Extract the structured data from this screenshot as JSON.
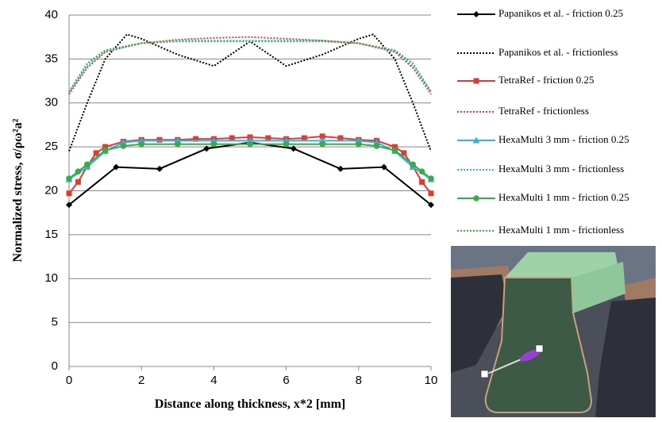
{
  "chart_data": {
    "type": "line",
    "xlabel": "Distance along thickness, x*2 [mm]",
    "ylabel": "Normalized stress, σ/ρω²a²",
    "xlim": [
      0,
      10
    ],
    "xticks": [
      0,
      2,
      4,
      6,
      8,
      10
    ],
    "ylim": [
      0,
      40
    ],
    "yticks": [
      0,
      5,
      10,
      15,
      20,
      25,
      30,
      35,
      40
    ],
    "grid": true,
    "series": [
      {
        "name": "Papanikos et al. - friction 0.25",
        "color": "#000000",
        "marker": "diamond",
        "dashed": false,
        "x": [
          0,
          1.3,
          2.5,
          3.8,
          5,
          6.2,
          7.5,
          8.7,
          10
        ],
        "values": [
          18.4,
          22.7,
          22.5,
          24.8,
          25.5,
          24.8,
          22.5,
          22.7,
          18.4
        ]
      },
      {
        "name": "Papanikos et al. - frictionless",
        "color": "#000000",
        "marker": null,
        "dashed": true,
        "x": [
          0,
          0.5,
          1,
          1.6,
          2,
          3,
          4,
          5,
          6,
          7,
          8,
          8.4,
          9,
          9.5,
          10
        ],
        "values": [
          24.5,
          30,
          35,
          37.8,
          37.3,
          35.5,
          34.2,
          37,
          34.2,
          35.5,
          37.3,
          37.8,
          35,
          30,
          24.5
        ]
      },
      {
        "name": "TetraRef - friction 0.25",
        "color": "#e03a33",
        "marker": "square",
        "dashed": false,
        "x": [
          0,
          0.25,
          0.5,
          0.75,
          1,
          1.5,
          2,
          2.5,
          3,
          3.5,
          4,
          4.5,
          5,
          5.5,
          6,
          6.5,
          7,
          7.5,
          8,
          8.5,
          9,
          9.25,
          9.5,
          9.75,
          10
        ],
        "values": [
          19.7,
          21,
          22.8,
          24.3,
          25,
          25.6,
          25.8,
          25.8,
          25.8,
          25.9,
          25.9,
          26,
          26.1,
          26,
          25.9,
          26,
          26.2,
          26,
          25.8,
          25.7,
          25,
          24.3,
          22.8,
          21,
          19.7
        ]
      },
      {
        "name": "TetraRef - frictionless",
        "color": "#e03a33",
        "marker": null,
        "dashed": true,
        "x": [
          0,
          0.5,
          1,
          2,
          3,
          4,
          5,
          6,
          7,
          8,
          9,
          9.5,
          10
        ],
        "values": [
          31,
          34,
          35.8,
          36.8,
          37.2,
          37.4,
          37.5,
          37.3,
          37.1,
          36.8,
          35.8,
          34,
          31
        ]
      },
      {
        "name": "HexaMulti 3 mm - friction 0.25",
        "color": "#2fb4e2",
        "marker": "triangle",
        "dashed": false,
        "x": [
          0,
          0.5,
          1,
          1.5,
          2,
          3,
          4,
          5,
          6,
          7,
          8,
          8.5,
          9,
          9.5,
          10
        ],
        "values": [
          21.3,
          22.7,
          24.5,
          25.5,
          25.7,
          25.7,
          25.7,
          25.7,
          25.7,
          25.7,
          25.7,
          25.5,
          24.5,
          22.7,
          21.3
        ]
      },
      {
        "name": "HexaMulti 3 mm - frictionless",
        "color": "#2fb4e2",
        "marker": null,
        "dashed": true,
        "x": [
          0,
          0.5,
          1,
          2,
          3,
          4,
          5,
          6,
          7,
          8,
          9,
          9.5,
          10
        ],
        "values": [
          31.2,
          34.2,
          35.9,
          36.8,
          37.1,
          37.1,
          37.1,
          37.1,
          37.1,
          36.8,
          35.9,
          34.2,
          31.2
        ]
      },
      {
        "name": "HexaMulti 1 mm - friction 0.25",
        "color": "#3aaa4a",
        "marker": "circle",
        "dashed": false,
        "x": [
          0,
          0.25,
          0.5,
          1,
          1.5,
          2,
          3,
          4,
          5,
          6,
          7,
          8,
          8.5,
          9,
          9.5,
          9.75,
          10
        ],
        "values": [
          21.4,
          22.2,
          23,
          24.6,
          25.1,
          25.3,
          25.3,
          25.3,
          25.3,
          25.3,
          25.3,
          25.3,
          25.1,
          24.6,
          23,
          22.2,
          21.4
        ]
      },
      {
        "name": "HexaMulti 1 mm - frictionless",
        "color": "#3aaa4a",
        "marker": null,
        "dashed": true,
        "x": [
          0,
          0.5,
          1,
          2,
          3,
          4,
          5,
          6,
          7,
          8,
          9,
          9.5,
          10
        ],
        "values": [
          31.3,
          34.5,
          36,
          36.8,
          37,
          37,
          37,
          37,
          37,
          36.8,
          36,
          34.5,
          31.3
        ]
      }
    ]
  }
}
